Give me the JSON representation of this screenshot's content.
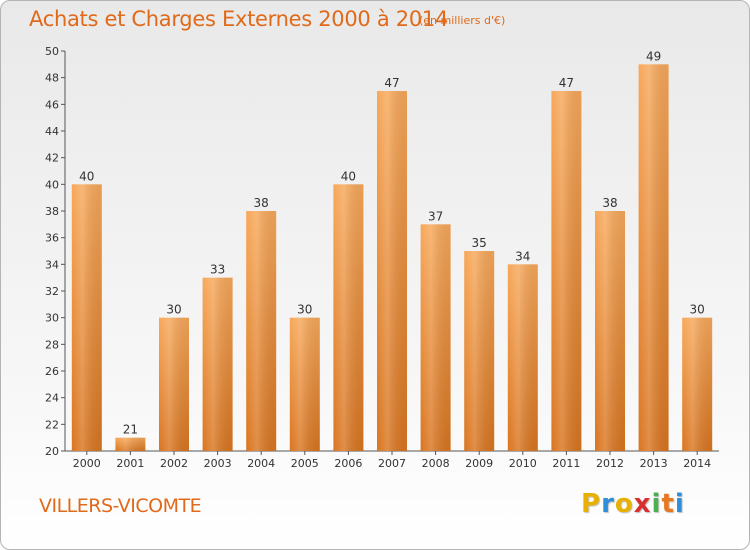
{
  "header": {
    "title": "Achats et Charges Externes 2000 à 2014",
    "subtitle": "(en milliers d'€)"
  },
  "footer": {
    "commune": "VILLERS-VICOMTE",
    "logo_letters": [
      "P",
      "r",
      "o",
      "x",
      "i",
      "t",
      "i"
    ],
    "logo_colors": [
      "#e8b000",
      "#2e8fd8",
      "#e8b000",
      "#d83030",
      "#4caf50",
      "#e87820",
      "#2e8fd8"
    ]
  },
  "colors": {
    "bar_light": "#f7a85a",
    "bar_dark": "#d97520",
    "accent": "#e06a1a"
  },
  "chart_data": {
    "type": "bar",
    "categories": [
      "2000",
      "2001",
      "2002",
      "2003",
      "2004",
      "2005",
      "2006",
      "2007",
      "2008",
      "2009",
      "2010",
      "2011",
      "2012",
      "2013",
      "2014"
    ],
    "values": [
      40,
      21,
      30,
      33,
      38,
      30,
      40,
      47,
      37,
      35,
      34,
      47,
      38,
      49,
      30
    ],
    "title": "Achats et Charges Externes 2000 à 2014",
    "ylim": [
      20,
      50
    ],
    "yticks": [
      20,
      22,
      24,
      26,
      28,
      30,
      32,
      34,
      36,
      38,
      40,
      42,
      44,
      46,
      48,
      50
    ],
    "grid": false
  }
}
